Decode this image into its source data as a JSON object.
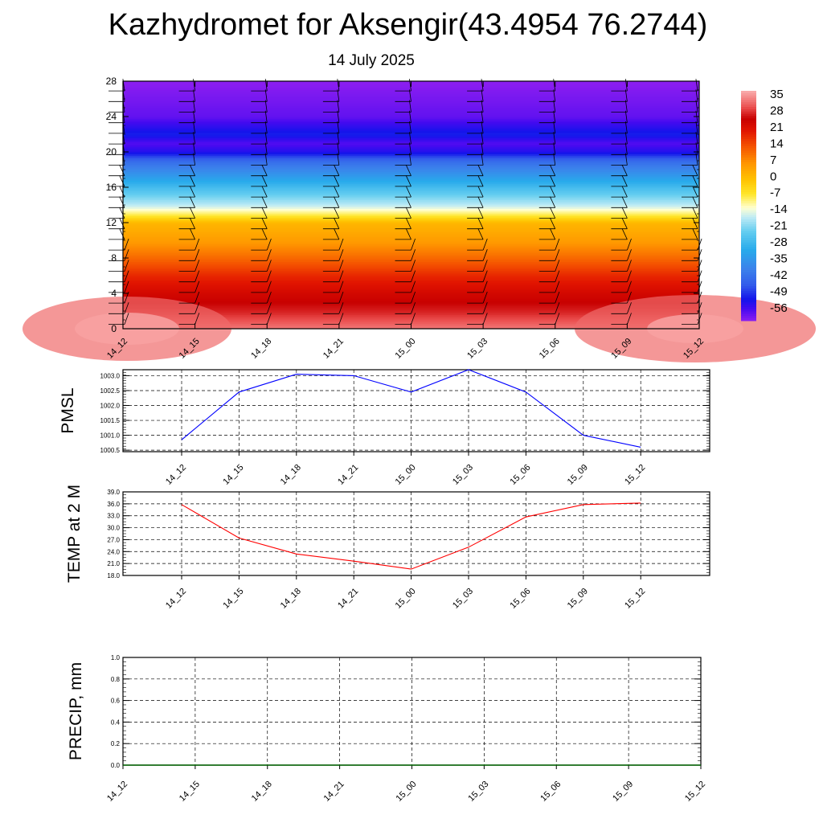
{
  "title": "Kazhydromet for Aksengir(43.4954 76.2744)",
  "subtitle": "14 July 2025",
  "chart_data": [
    {
      "type": "heatmap",
      "x_ticks": [
        "14_12",
        "14_15",
        "14_18",
        "14_21",
        "15_00",
        "15_03",
        "15_06",
        "15_09",
        "15_12"
      ],
      "y_ticks": [
        0,
        4,
        8,
        12,
        16,
        20,
        24,
        28
      ],
      "ylim": [
        0,
        28
      ],
      "colorbar": {
        "labels": [
          "35",
          "28",
          "21",
          "14",
          "7",
          "0",
          "-7",
          "-14",
          "-21",
          "-28",
          "-35",
          "-42",
          "-49",
          "-56"
        ],
        "range": [
          -60,
          38
        ]
      },
      "temperature_profile": [
        {
          "h": 0,
          "t": 34
        },
        {
          "h": 1,
          "t": 31
        },
        {
          "h": 2,
          "t": 28
        },
        {
          "h": 3,
          "t": 26
        },
        {
          "h": 4,
          "t": 24
        },
        {
          "h": 6,
          "t": 19
        },
        {
          "h": 8,
          "t": 12
        },
        {
          "h": 10,
          "t": 6
        },
        {
          "h": 12,
          "t": 2
        },
        {
          "h": 13,
          "t": -8
        },
        {
          "h": 14,
          "t": -16
        },
        {
          "h": 16,
          "t": -26
        },
        {
          "h": 18,
          "t": -37
        },
        {
          "h": 19,
          "t": -42
        },
        {
          "h": 20,
          "t": -52
        },
        {
          "h": 21,
          "t": -56
        },
        {
          "h": 22,
          "t": -50
        },
        {
          "h": 24,
          "t": -57
        },
        {
          "h": 28,
          "t": -60
        }
      ],
      "wind_barbs": "black barbs at every time column",
      "grid": false
    },
    {
      "type": "line",
      "ylabel": "PMSL",
      "x": [
        "14_12",
        "14_15",
        "14_18",
        "14_21",
        "15_00",
        "15_03",
        "15_06",
        "15_09",
        "15_12"
      ],
      "y_ticks": [
        "1000.5",
        "1001.0",
        "1001.5",
        "1002.0",
        "1002.5",
        "1003.0"
      ],
      "ylim": [
        1000.45,
        1003.2
      ],
      "series": [
        {
          "values": [
            1000.85,
            1002.45,
            1003.05,
            1003.0,
            1002.45,
            1003.2,
            1002.45,
            1001.0,
            1000.6
          ],
          "color": "#0000ff"
        }
      ],
      "grid": true
    },
    {
      "type": "line",
      "ylabel": "TEMP at 2 M",
      "x": [
        "14_12",
        "14_15",
        "14_18",
        "14_21",
        "15_00",
        "15_03",
        "15_06",
        "15_09",
        "15_12"
      ],
      "y_ticks": [
        "18.0",
        "21.0",
        "24.0",
        "27.0",
        "30.0",
        "33.0",
        "36.0",
        "39.0"
      ],
      "ylim": [
        18,
        39
      ],
      "series": [
        {
          "values": [
            35.8,
            27.4,
            23.4,
            21.6,
            19.6,
            25.1,
            32.7,
            35.8,
            36.2
          ],
          "color": "#ff0000"
        }
      ],
      "grid": true
    },
    {
      "type": "line",
      "ylabel": "PRECIP, mm",
      "x_ticks": [
        "14_12",
        "14_15",
        "14_18",
        "14_21",
        "15_00",
        "15_03",
        "15_06",
        "15_09",
        "15_12"
      ],
      "y_ticks": [
        "0.0",
        "0.2",
        "0.4",
        "0.6",
        "0.8",
        "1.0"
      ],
      "ylim": [
        0,
        1
      ],
      "series": [
        {
          "values": [
            0,
            0,
            0,
            0,
            0,
            0,
            0,
            0,
            0
          ],
          "color": "#006400"
        }
      ],
      "grid": true
    }
  ]
}
